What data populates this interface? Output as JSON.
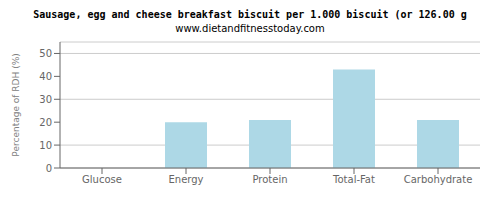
{
  "chart_data": {
    "type": "bar",
    "title": "Sausage, egg and cheese breakfast biscuit per 1.000 biscuit (or 126.00 g",
    "subtitle": "www.dietandfitnesstoday.com",
    "categories": [
      "Glucose",
      "Energy",
      "Protein",
      "Total-Fat",
      "Carbohydrate"
    ],
    "values": [
      0,
      20,
      21,
      43,
      21
    ],
    "color": "#add8e6",
    "ylabel": "Percentage of RDH (%)",
    "ylim": [
      0,
      55
    ],
    "yticks": [
      0,
      10,
      20,
      30,
      40,
      50
    ],
    "grid": true
  }
}
